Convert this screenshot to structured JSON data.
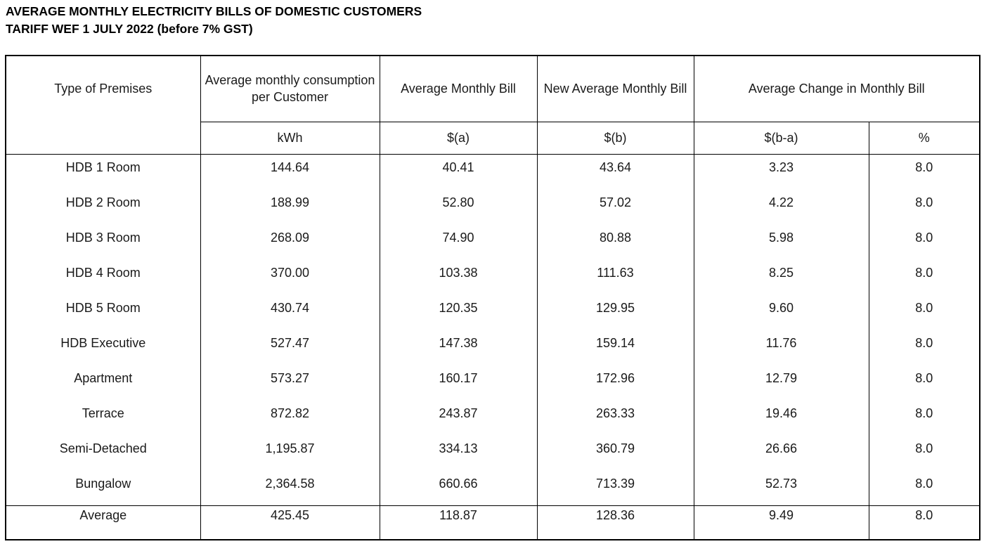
{
  "title": {
    "line1": "AVERAGE MONTHLY ELECTRICITY BILLS OF DOMESTIC CUSTOMERS",
    "line2": "TARIFF WEF 1 JULY 2022 (before 7% GST)"
  },
  "table": {
    "headers": {
      "type_of_premises": "Type of Premises",
      "consumption": "Average monthly consumption per Customer",
      "avg_bill": "Average Monthly Bill",
      "new_avg_bill": "New Average Monthly Bill",
      "avg_change": "Average Change in Monthly Bill"
    },
    "units": [
      "kWh",
      "$(a)",
      "$(b)",
      "$(b-a)",
      "%"
    ],
    "rows": [
      [
        "HDB 1 Room",
        "144.64",
        "40.41",
        "43.64",
        "3.23",
        "8.0"
      ],
      [
        "HDB 2 Room",
        "188.99",
        "52.80",
        "57.02",
        "4.22",
        "8.0"
      ],
      [
        "HDB 3 Room",
        "268.09",
        "74.90",
        "80.88",
        "5.98",
        "8.0"
      ],
      [
        "HDB 4 Room",
        "370.00",
        "103.38",
        "111.63",
        "8.25",
        "8.0"
      ],
      [
        "HDB 5 Room",
        "430.74",
        "120.35",
        "129.95",
        "9.60",
        "8.0"
      ],
      [
        "HDB Executive",
        "527.47",
        "147.38",
        "159.14",
        "11.76",
        "8.0"
      ],
      [
        "Apartment",
        "573.27",
        "160.17",
        "172.96",
        "12.79",
        "8.0"
      ],
      [
        "Terrace",
        "872.82",
        "243.87",
        "263.33",
        "19.46",
        "8.0"
      ],
      [
        "Semi-Detached",
        "1,195.87",
        "334.13",
        "360.79",
        "26.66",
        "8.0"
      ],
      [
        "Bungalow",
        "2,364.58",
        "660.66",
        "713.39",
        "52.73",
        "8.0"
      ]
    ],
    "average_row": [
      "Average",
      "425.45",
      "118.87",
      "128.36",
      "9.49",
      "8.0"
    ]
  },
  "colors": {
    "text": "#1a1a1a",
    "border": "#000000",
    "background": "#ffffff"
  }
}
